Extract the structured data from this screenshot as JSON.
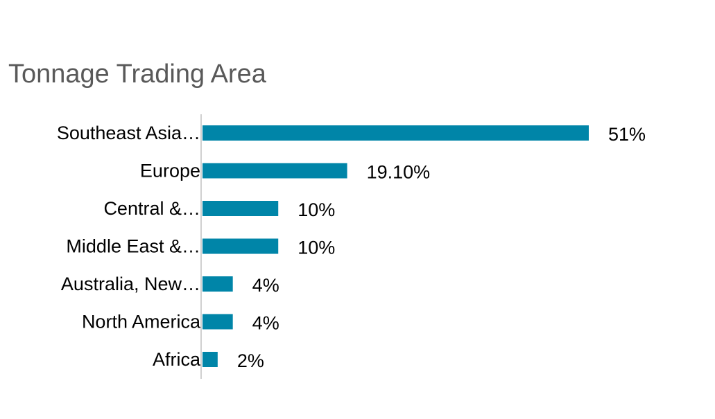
{
  "chart_data": {
    "type": "bar",
    "orientation": "horizontal",
    "title": "Tonnage Trading Area",
    "xlabel": "",
    "ylabel": "",
    "categories": [
      "Southeast Asia…",
      "Europe",
      "Central &…",
      "Middle East &…",
      "Australia, New…",
      "North America",
      "Africa"
    ],
    "values": [
      51,
      19.1,
      10,
      10,
      4,
      4,
      2
    ],
    "value_labels": [
      "51%",
      "19.10%",
      "10%",
      "10%",
      "4%",
      "4%",
      "2%"
    ],
    "grid": false,
    "legend": "none",
    "colors": {
      "bar": "#0085A8",
      "axis": "#d0d0d0"
    }
  }
}
